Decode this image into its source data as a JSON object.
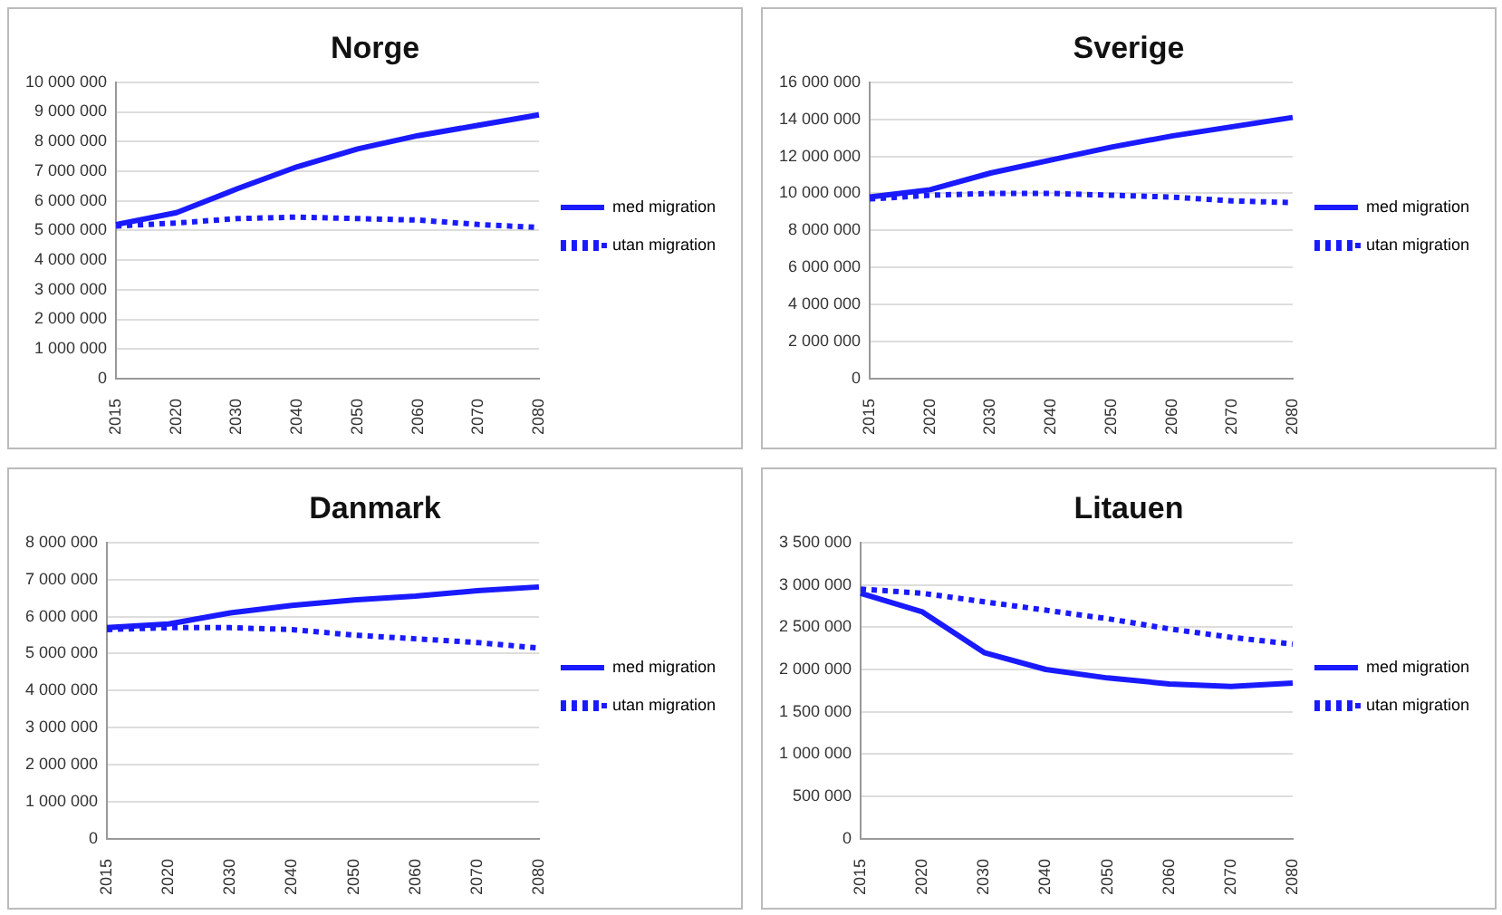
{
  "chart_data": [
    {
      "type": "line",
      "title": "Norge",
      "categories": [
        "2015",
        "2020",
        "2030",
        "2040",
        "2050",
        "2060",
        "2070",
        "2080"
      ],
      "series": [
        {
          "name": "med migration",
          "color": "#1a1aff",
          "line_style": "solid",
          "values": [
            5200000,
            5600000,
            6400000,
            7150000,
            7750000,
            8200000,
            8550000,
            8900000
          ]
        },
        {
          "name": "utan migration",
          "color": "#1a1aff",
          "line_style": "dotted",
          "values": [
            5150000,
            5250000,
            5400000,
            5450000,
            5400000,
            5350000,
            5200000,
            5100000
          ]
        }
      ],
      "ylim": [
        0,
        10000000
      ],
      "yticks": [
        {
          "value": 0,
          "label": "0"
        },
        {
          "value": 1000000,
          "label": "1 000 000"
        },
        {
          "value": 2000000,
          "label": "2 000 000"
        },
        {
          "value": 3000000,
          "label": "3 000 000"
        },
        {
          "value": 4000000,
          "label": "4 000 000"
        },
        {
          "value": 5000000,
          "label": "5 000 000"
        },
        {
          "value": 6000000,
          "label": "6 000 000"
        },
        {
          "value": 7000000,
          "label": "7 000 000"
        },
        {
          "value": 8000000,
          "label": "8 000 000"
        },
        {
          "value": 9000000,
          "label": "9 000 000"
        },
        {
          "value": 10000000,
          "label": "10 000 000"
        }
      ],
      "grid": "y",
      "legend": "right",
      "marker": "none"
    },
    {
      "type": "line",
      "title": "Sverige",
      "categories": [
        "2015",
        "2020",
        "2030",
        "2040",
        "2050",
        "2060",
        "2070",
        "2080"
      ],
      "series": [
        {
          "name": "med migration",
          "color": "#1a1aff",
          "line_style": "solid",
          "values": [
            9800000,
            10200000,
            11100000,
            11800000,
            12500000,
            13100000,
            13600000,
            14100000
          ]
        },
        {
          "name": "utan migration",
          "color": "#1a1aff",
          "line_style": "dotted",
          "values": [
            9700000,
            9900000,
            10000000,
            10000000,
            9900000,
            9800000,
            9600000,
            9500000
          ]
        }
      ],
      "ylim": [
        0,
        16000000
      ],
      "yticks": [
        {
          "value": 0,
          "label": "0"
        },
        {
          "value": 2000000,
          "label": "2 000 000"
        },
        {
          "value": 4000000,
          "label": "4 000 000"
        },
        {
          "value": 6000000,
          "label": "6 000 000"
        },
        {
          "value": 8000000,
          "label": "8 000 000"
        },
        {
          "value": 10000000,
          "label": "10 000 000"
        },
        {
          "value": 12000000,
          "label": "12 000 000"
        },
        {
          "value": 14000000,
          "label": "14 000 000"
        },
        {
          "value": 16000000,
          "label": "16 000 000"
        }
      ],
      "grid": "y",
      "legend": "right",
      "marker": "none"
    },
    {
      "type": "line",
      "title": "Danmark",
      "categories": [
        "2015",
        "2020",
        "2030",
        "2040",
        "2050",
        "2060",
        "2070",
        "2080"
      ],
      "series": [
        {
          "name": "med migration",
          "color": "#1a1aff",
          "line_style": "solid",
          "values": [
            5700000,
            5800000,
            6100000,
            6300000,
            6450000,
            6550000,
            6700000,
            6800000
          ]
        },
        {
          "name": "utan migration",
          "color": "#1a1aff",
          "line_style": "dotted",
          "values": [
            5650000,
            5700000,
            5700000,
            5650000,
            5500000,
            5400000,
            5300000,
            5150000
          ]
        }
      ],
      "ylim": [
        0,
        8000000
      ],
      "yticks": [
        {
          "value": 0,
          "label": "0"
        },
        {
          "value": 1000000,
          "label": "1 000 000"
        },
        {
          "value": 2000000,
          "label": "2 000 000"
        },
        {
          "value": 3000000,
          "label": "3 000 000"
        },
        {
          "value": 4000000,
          "label": "4 000 000"
        },
        {
          "value": 5000000,
          "label": "5 000 000"
        },
        {
          "value": 6000000,
          "label": "6 000 000"
        },
        {
          "value": 7000000,
          "label": "7 000 000"
        },
        {
          "value": 8000000,
          "label": "8 000 000"
        }
      ],
      "grid": "y",
      "legend": "right",
      "marker": "none"
    },
    {
      "type": "line",
      "title": "Litauen",
      "categories": [
        "2015",
        "2020",
        "2030",
        "2040",
        "2050",
        "2060",
        "2070",
        "2080"
      ],
      "series": [
        {
          "name": "med migration",
          "color": "#1a1aff",
          "line_style": "solid",
          "values": [
            2900000,
            2680000,
            2200000,
            2000000,
            1900000,
            1830000,
            1800000,
            1840000
          ]
        },
        {
          "name": "utan migration",
          "color": "#1a1aff",
          "line_style": "dotted",
          "values": [
            2950000,
            2900000,
            2800000,
            2700000,
            2600000,
            2480000,
            2380000,
            2300000
          ]
        }
      ],
      "ylim": [
        0,
        3500000
      ],
      "yticks": [
        {
          "value": 0,
          "label": "0"
        },
        {
          "value": 500000,
          "label": "500 000"
        },
        {
          "value": 1000000,
          "label": "1 000 000"
        },
        {
          "value": 1500000,
          "label": "1 500 000"
        },
        {
          "value": 2000000,
          "label": "2 000 000"
        },
        {
          "value": 2500000,
          "label": "2 500 000"
        },
        {
          "value": 3000000,
          "label": "3 000 000"
        },
        {
          "value": 3500000,
          "label": "3 500 000"
        }
      ],
      "grid": "y",
      "legend": "right",
      "marker": "none"
    }
  ]
}
